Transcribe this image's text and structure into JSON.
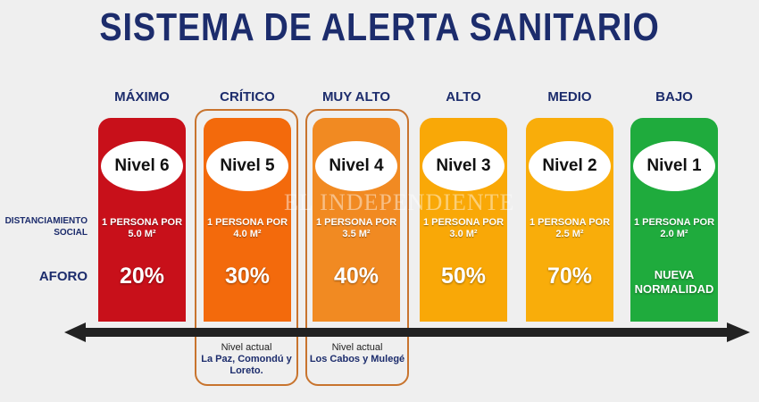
{
  "title": "SISTEMA DE ALERTA SANITARIO",
  "row_labels": {
    "distanciamiento": "DISTANCIAMIENTO SOCIAL",
    "aforo": "AFORO"
  },
  "watermark": "EL INDEPENDIENTE",
  "levels": [
    {
      "name": "MÁXIMO",
      "nivel": "Nivel 6",
      "dist1": "1 PERSONA POR",
      "dist2": "5.0 M²",
      "aforo": "20%",
      "color": "#c8101a"
    },
    {
      "name": "CRÍTICO",
      "nivel": "Nivel 5",
      "dist1": "1 PERSONA POR",
      "dist2": "4.0 M²",
      "aforo": "30%",
      "color": "#f36a0c"
    },
    {
      "name": "MUY ALTO",
      "nivel": "Nivel 4",
      "dist1": "1 PERSONA POR",
      "dist2": "3.5 M²",
      "aforo": "40%",
      "color": "#f18a22"
    },
    {
      "name": "ALTO",
      "nivel": "Nivel 3",
      "dist1": "1 PERSONA POR",
      "dist2": "3.0 M²",
      "aforo": "50%",
      "color": "#f9a807"
    },
    {
      "name": "MEDIO",
      "nivel": "Nivel 2",
      "dist1": "1 PERSONA POR",
      "dist2": "2.5 M²",
      "aforo": "70%",
      "color": "#f9ad0a"
    },
    {
      "name": "BAJO",
      "nivel": "Nivel 1",
      "dist1": "1 PERSONA POR",
      "dist2": "2.0 M²",
      "aforo": "NUEVA NORMALIDAD",
      "color": "#1fab3d"
    }
  ],
  "notes": [
    {
      "label": "Nivel actual",
      "places": "La Paz, Comondú y Loreto."
    },
    {
      "label": "Nivel actual",
      "places": "Los Cabos y Mulegé"
    }
  ],
  "colors": {
    "title": "#1c2c6c",
    "outline": "#c8742e",
    "arrow": "#222222"
  }
}
